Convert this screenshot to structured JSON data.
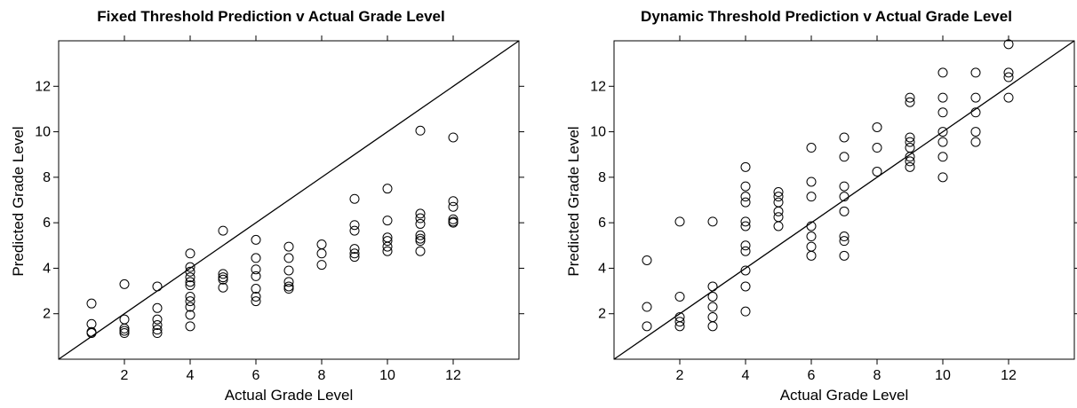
{
  "chart_data": [
    {
      "type": "scatter",
      "title": "Fixed Threshold Prediction v Actual Grade Level",
      "xlabel": "Actual Grade Level",
      "ylabel": "Predicted Grade Level",
      "xlim": [
        0,
        14
      ],
      "ylim": [
        0,
        14
      ],
      "xticks": [
        2,
        4,
        6,
        8,
        10,
        12
      ],
      "yticks": [
        2,
        4,
        6,
        8,
        10,
        12
      ],
      "reference_line": "y = x",
      "points": [
        [
          1,
          2.45
        ],
        [
          1,
          1.55
        ],
        [
          1,
          1.2
        ],
        [
          1,
          1.15
        ],
        [
          2,
          3.3
        ],
        [
          2,
          1.75
        ],
        [
          2,
          1.35
        ],
        [
          2,
          1.25
        ],
        [
          2,
          1.15
        ],
        [
          3,
          3.2
        ],
        [
          3,
          2.25
        ],
        [
          3,
          1.75
        ],
        [
          3,
          1.5
        ],
        [
          3,
          1.3
        ],
        [
          3,
          1.15
        ],
        [
          4,
          4.65
        ],
        [
          4,
          4.05
        ],
        [
          4,
          3.85
        ],
        [
          4,
          3.6
        ],
        [
          4,
          3.4
        ],
        [
          4,
          3.25
        ],
        [
          4,
          2.75
        ],
        [
          4,
          2.55
        ],
        [
          4,
          2.3
        ],
        [
          4,
          1.95
        ],
        [
          4,
          1.45
        ],
        [
          5,
          5.65
        ],
        [
          5,
          3.75
        ],
        [
          5,
          3.6
        ],
        [
          5,
          3.5
        ],
        [
          5,
          3.15
        ],
        [
          6,
          5.25
        ],
        [
          6,
          4.45
        ],
        [
          6,
          3.95
        ],
        [
          6,
          3.65
        ],
        [
          6,
          3.1
        ],
        [
          6,
          2.75
        ],
        [
          6,
          2.55
        ],
        [
          7,
          4.95
        ],
        [
          7,
          4.45
        ],
        [
          7,
          3.9
        ],
        [
          7,
          3.4
        ],
        [
          7,
          3.2
        ],
        [
          7,
          3.1
        ],
        [
          8,
          5.05
        ],
        [
          8,
          4.65
        ],
        [
          8,
          4.15
        ],
        [
          9,
          7.05
        ],
        [
          9,
          5.9
        ],
        [
          9,
          5.65
        ],
        [
          9,
          4.85
        ],
        [
          9,
          4.65
        ],
        [
          9,
          4.5
        ],
        [
          10,
          7.5
        ],
        [
          10,
          6.1
        ],
        [
          10,
          5.35
        ],
        [
          10,
          5.2
        ],
        [
          10,
          4.95
        ],
        [
          10,
          4.75
        ],
        [
          11,
          10.05
        ],
        [
          11,
          6.4
        ],
        [
          11,
          6.2
        ],
        [
          11,
          5.95
        ],
        [
          11,
          5.45
        ],
        [
          11,
          5.3
        ],
        [
          11,
          5.2
        ],
        [
          11,
          4.75
        ],
        [
          12,
          9.75
        ],
        [
          12,
          6.95
        ],
        [
          12,
          6.7
        ],
        [
          12,
          6.15
        ],
        [
          12,
          6.05
        ],
        [
          12,
          6.0
        ]
      ]
    },
    {
      "type": "scatter",
      "title": "Dynamic Threshold Prediction v Actual Grade Level",
      "xlabel": "Actual Grade Level",
      "ylabel": "Predicted Grade Level",
      "xlim": [
        0,
        14
      ],
      "ylim": [
        0,
        14
      ],
      "xticks": [
        2,
        4,
        6,
        8,
        10,
        12
      ],
      "yticks": [
        2,
        4,
        6,
        8,
        10,
        12
      ],
      "reference_line": "y = x",
      "points": [
        [
          1,
          4.35
        ],
        [
          1,
          2.3
        ],
        [
          1,
          1.45
        ],
        [
          2,
          6.05
        ],
        [
          2,
          2.75
        ],
        [
          2,
          1.85
        ],
        [
          2,
          1.65
        ],
        [
          2,
          1.45
        ],
        [
          3,
          6.05
        ],
        [
          3,
          3.2
        ],
        [
          3,
          2.75
        ],
        [
          3,
          2.3
        ],
        [
          3,
          1.85
        ],
        [
          3,
          1.45
        ],
        [
          4,
          8.45
        ],
        [
          4,
          7.6
        ],
        [
          4,
          7.15
        ],
        [
          4,
          6.9
        ],
        [
          4,
          6.05
        ],
        [
          4,
          5.85
        ],
        [
          4,
          5.0
        ],
        [
          4,
          4.75
        ],
        [
          4,
          3.9
        ],
        [
          4,
          3.2
        ],
        [
          4,
          2.1
        ],
        [
          5,
          7.35
        ],
        [
          5,
          7.15
        ],
        [
          5,
          6.9
        ],
        [
          5,
          6.5
        ],
        [
          5,
          6.25
        ],
        [
          5,
          5.85
        ],
        [
          6,
          9.3
        ],
        [
          6,
          7.8
        ],
        [
          6,
          7.15
        ],
        [
          6,
          5.85
        ],
        [
          6,
          5.4
        ],
        [
          6,
          4.95
        ],
        [
          6,
          4.55
        ],
        [
          7,
          9.75
        ],
        [
          7,
          8.9
        ],
        [
          7,
          7.6
        ],
        [
          7,
          7.15
        ],
        [
          7,
          6.5
        ],
        [
          7,
          5.4
        ],
        [
          7,
          5.2
        ],
        [
          7,
          4.55
        ],
        [
          8,
          10.2
        ],
        [
          8,
          9.3
        ],
        [
          8,
          8.25
        ],
        [
          9,
          11.5
        ],
        [
          9,
          11.3
        ],
        [
          9,
          9.75
        ],
        [
          9,
          9.55
        ],
        [
          9,
          9.3
        ],
        [
          9,
          8.9
        ],
        [
          9,
          8.7
        ],
        [
          9,
          8.45
        ],
        [
          10,
          12.6
        ],
        [
          10,
          11.5
        ],
        [
          10,
          10.85
        ],
        [
          10,
          10.0
        ],
        [
          10,
          9.55
        ],
        [
          10,
          8.9
        ],
        [
          10,
          8.0
        ],
        [
          11,
          12.6
        ],
        [
          11,
          11.5
        ],
        [
          11,
          10.85
        ],
        [
          11,
          10.0
        ],
        [
          11,
          9.55
        ],
        [
          12,
          13.85
        ],
        [
          12,
          12.6
        ],
        [
          12,
          12.4
        ],
        [
          12,
          11.5
        ]
      ]
    }
  ]
}
